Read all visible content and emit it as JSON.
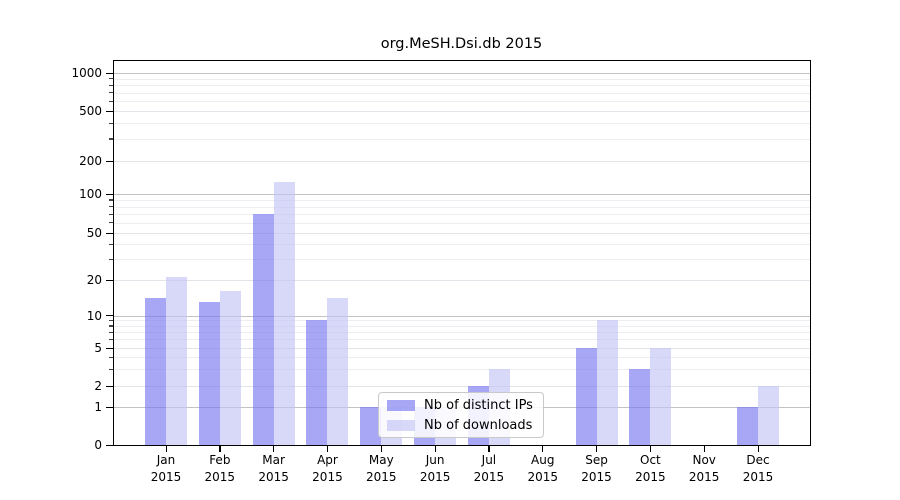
{
  "chart_data": {
    "type": "bar",
    "title": "org.MeSH.Dsi.db 2015",
    "categories": [
      {
        "month": "Jan",
        "year": "2015"
      },
      {
        "month": "Feb",
        "year": "2015"
      },
      {
        "month": "Mar",
        "year": "2015"
      },
      {
        "month": "Apr",
        "year": "2015"
      },
      {
        "month": "May",
        "year": "2015"
      },
      {
        "month": "Jun",
        "year": "2015"
      },
      {
        "month": "Jul",
        "year": "2015"
      },
      {
        "month": "Aug",
        "year": "2015"
      },
      {
        "month": "Sep",
        "year": "2015"
      },
      {
        "month": "Oct",
        "year": "2015"
      },
      {
        "month": "Nov",
        "year": "2015"
      },
      {
        "month": "Dec",
        "year": "2015"
      }
    ],
    "series": [
      {
        "name": "Nb of distinct IPs",
        "color": "#7878f0",
        "opacity": 0.65,
        "values": [
          14,
          13,
          70,
          9,
          1,
          1,
          2,
          0,
          5,
          3,
          0,
          1
        ]
      },
      {
        "name": "Nb of downloads",
        "color": "#c3c3f4",
        "opacity": 0.65,
        "values": [
          21,
          16,
          130,
          14,
          1,
          1,
          3,
          0,
          9,
          5,
          0,
          2
        ]
      }
    ],
    "y_axis": {
      "scale": "symlog",
      "tick_labels": [
        "0",
        "1",
        "2",
        "5",
        "10",
        "20",
        "50",
        "100",
        "200",
        "500",
        "1000"
      ],
      "tick_values": [
        0,
        1,
        2,
        5,
        10,
        20,
        50,
        100,
        200,
        500,
        1000
      ],
      "max": 1000
    },
    "legend": {
      "entries": [
        "Nb of distinct IPs",
        "Nb of downloads"
      ],
      "position": "lower-center-inside"
    },
    "colors": {
      "major_gridline": "#c3c3c3",
      "labeled_minor_gridline": "#e3e3ea",
      "minor_gridline": "#ededf2",
      "axis": "#000000",
      "background": "#ffffff"
    }
  }
}
